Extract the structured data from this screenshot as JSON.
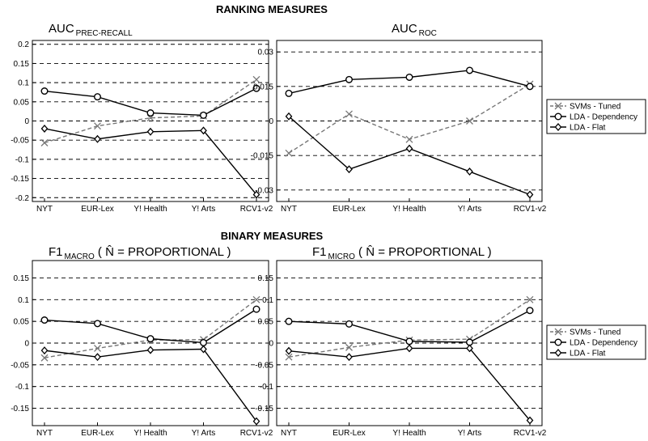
{
  "figure": {
    "section_titles": [
      "RANKING MEASURES",
      "BINARY MEASURES"
    ]
  },
  "legend": {
    "entries": [
      "SVMs - Tuned",
      "LDA - Dependency",
      "LDA - Flat"
    ]
  },
  "chart_data": [
    {
      "type": "line",
      "title": "AUC",
      "title_subscript": "PREC-RECALL",
      "categories": [
        "NYT",
        "EUR-Lex",
        "Y! Health",
        "Y! Arts",
        "RCV1-v2"
      ],
      "ylim": [
        -0.21,
        0.21
      ],
      "yticks": [
        -0.2,
        -0.15,
        -0.1,
        -0.05,
        0,
        0.05,
        0.1,
        0.15,
        0.2
      ],
      "ytick_labels": [
        "-0.2",
        "-0.15",
        "-0.1",
        "-0.05",
        "0",
        "0.05",
        "0.1",
        "0.15",
        "0.2"
      ],
      "grid": "dashed horizontal",
      "series": [
        {
          "name": "SVMs - Tuned",
          "marker": "x",
          "style": "dashed",
          "color": "#777777",
          "values": [
            -0.057,
            -0.013,
            0.008,
            0.013,
            0.108
          ]
        },
        {
          "name": "LDA - Dependency",
          "marker": "o",
          "style": "solid",
          "color": "#000000",
          "values": [
            0.078,
            0.063,
            0.021,
            0.015,
            0.085
          ]
        },
        {
          "name": "LDA - Flat",
          "marker": "d",
          "style": "solid",
          "color": "#000000",
          "values": [
            -0.02,
            -0.047,
            -0.028,
            -0.025,
            -0.192
          ]
        }
      ]
    },
    {
      "type": "line",
      "title": "AUC",
      "title_subscript": "ROC",
      "categories": [
        "NYT",
        "EUR-Lex",
        "Y! Health",
        "Y! Arts",
        "RCV1-v2"
      ],
      "ylim": [
        -0.035,
        0.035
      ],
      "yticks": [
        -0.03,
        -0.015,
        0,
        0.015,
        0.03
      ],
      "ytick_labels": [
        "-0.03",
        "-0.015",
        "0",
        "0.015",
        "0.03"
      ],
      "grid": "dashed horizontal",
      "series": [
        {
          "name": "SVMs - Tuned",
          "marker": "x",
          "style": "dashed",
          "color": "#777777",
          "values": [
            -0.014,
            0.003,
            -0.008,
            0.0,
            0.016
          ]
        },
        {
          "name": "LDA - Dependency",
          "marker": "o",
          "style": "solid",
          "color": "#000000",
          "values": [
            0.012,
            0.018,
            0.019,
            0.022,
            0.015
          ]
        },
        {
          "name": "LDA - Flat",
          "marker": "d",
          "style": "solid",
          "color": "#000000",
          "values": [
            0.002,
            -0.021,
            -0.012,
            -0.022,
            -0.032
          ]
        }
      ]
    },
    {
      "type": "line",
      "title": "F1",
      "title_subscript": "MACRO",
      "title_suffix": " ( N̂ = PROPORTIONAL )",
      "categories": [
        "NYT",
        "EUR-Lex",
        "Y! Health",
        "Y! Arts",
        "RCV1-v2"
      ],
      "ylim": [
        -0.19,
        0.19
      ],
      "yticks": [
        -0.15,
        -0.1,
        -0.05,
        0,
        0.05,
        0.1,
        0.15
      ],
      "ytick_labels": [
        "-0.15",
        "-0.1",
        "-0.05",
        "0",
        "0.05",
        "0.1",
        "0.15"
      ],
      "grid": "dashed horizontal",
      "series": [
        {
          "name": "SVMs - Tuned",
          "marker": "x",
          "style": "dashed",
          "color": "#777777",
          "values": [
            -0.034,
            -0.012,
            0.007,
            0.008,
            0.1
          ]
        },
        {
          "name": "LDA - Dependency",
          "marker": "o",
          "style": "solid",
          "color": "#000000",
          "values": [
            0.053,
            0.045,
            0.01,
            0.001,
            0.078
          ]
        },
        {
          "name": "LDA - Flat",
          "marker": "d",
          "style": "solid",
          "color": "#000000",
          "values": [
            -0.017,
            -0.032,
            -0.016,
            -0.014,
            -0.18
          ]
        }
      ]
    },
    {
      "type": "line",
      "title": "F1",
      "title_subscript": "MICRO",
      "title_suffix": " ( N̂ = PROPORTIONAL )",
      "categories": [
        "NYT",
        "EUR-Lex",
        "Y! Health",
        "Y! Arts",
        "RCV1-v2"
      ],
      "ylim": [
        -0.19,
        0.19
      ],
      "yticks": [
        -0.15,
        -0.1,
        -0.05,
        0,
        0.05,
        0.1,
        0.15
      ],
      "ytick_labels": [
        "-0.15",
        "-0.1",
        "-0.05",
        "0",
        "0.05",
        "0.1",
        "0.15"
      ],
      "grid": "dashed horizontal",
      "series": [
        {
          "name": "SVMs - Tuned",
          "marker": "x",
          "style": "dashed",
          "color": "#777777",
          "values": [
            -0.032,
            -0.01,
            0.007,
            0.009,
            0.1
          ]
        },
        {
          "name": "LDA - Dependency",
          "marker": "o",
          "style": "solid",
          "color": "#000000",
          "values": [
            0.05,
            0.044,
            0.004,
            0.002,
            0.075
          ]
        },
        {
          "name": "LDA - Flat",
          "marker": "d",
          "style": "solid",
          "color": "#000000",
          "values": [
            -0.018,
            -0.032,
            -0.012,
            -0.012,
            -0.178
          ]
        }
      ]
    }
  ]
}
